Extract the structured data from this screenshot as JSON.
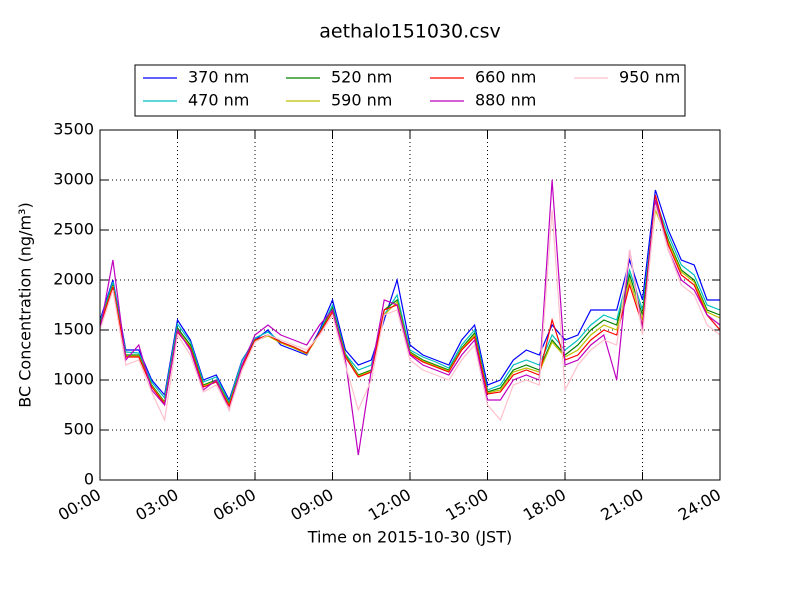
{
  "chart_data": {
    "type": "line",
    "title": "aethalo151030.csv",
    "x_label": "Time on 2015-10-30 (JST)",
    "y_label": "BC Concentration (ng/m³)",
    "x": [
      0,
      0.5,
      1,
      1.5,
      2,
      2.5,
      3,
      3.5,
      4,
      4.5,
      5,
      5.5,
      6,
      6.5,
      7,
      7.5,
      8,
      8.5,
      9,
      9.5,
      10,
      10.5,
      11,
      11.5,
      12,
      12.5,
      13,
      13.5,
      14,
      14.5,
      15,
      15.5,
      16,
      16.5,
      17,
      17.5,
      18,
      18.5,
      19,
      19.5,
      20,
      20.5,
      21,
      21.5,
      22,
      22.5,
      23,
      23.5,
      24
    ],
    "xlim": [
      0,
      24
    ],
    "xticks": [
      {
        "value": 0,
        "label": "00:00"
      },
      {
        "value": 3,
        "label": "03:00"
      },
      {
        "value": 6,
        "label": "06:00"
      },
      {
        "value": 9,
        "label": "09:00"
      },
      {
        "value": 12,
        "label": "12:00"
      },
      {
        "value": 15,
        "label": "15:00"
      },
      {
        "value": 18,
        "label": "18:00"
      },
      {
        "value": 21,
        "label": "21:00"
      },
      {
        "value": 24,
        "label": "24:00"
      }
    ],
    "ylim": [
      0,
      3500
    ],
    "yticks": [
      0,
      500,
      1000,
      1500,
      2000,
      2500,
      3000,
      3500
    ],
    "grid": true,
    "series": [
      {
        "name": "370 nm",
        "color": "#0000ff",
        "values": [
          1600,
          2000,
          1300,
          1300,
          1000,
          850,
          1600,
          1400,
          1000,
          1050,
          800,
          1200,
          1400,
          1500,
          1350,
          1300,
          1250,
          1500,
          1800,
          1300,
          1150,
          1200,
          1600,
          2000,
          1350,
          1250,
          1200,
          1150,
          1400,
          1550,
          950,
          1000,
          1200,
          1300,
          1250,
          1550,
          1400,
          1450,
          1700,
          1700,
          1700,
          2200,
          1800,
          2900,
          2500,
          2200,
          2150,
          1800,
          1800
        ]
      },
      {
        "name": "470 nm",
        "color": "#00bfbf",
        "values": [
          1580,
          1980,
          1280,
          1270,
          980,
          820,
          1560,
          1380,
          980,
          1030,
          780,
          1190,
          1420,
          1480,
          1380,
          1320,
          1260,
          1480,
          1750,
          1260,
          1100,
          1150,
          1650,
          1850,
          1300,
          1230,
          1180,
          1120,
          1350,
          1500,
          900,
          950,
          1150,
          1200,
          1150,
          1450,
          1300,
          1400,
          1550,
          1650,
          1600,
          2100,
          1700,
          2800,
          2450,
          2150,
          2050,
          1750,
          1700
        ]
      },
      {
        "name": "520 nm",
        "color": "#008000",
        "values": [
          1560,
          1950,
          1250,
          1250,
          950,
          780,
          1520,
          1350,
          950,
          1000,
          760,
          1150,
          1400,
          1450,
          1380,
          1330,
          1270,
          1470,
          1720,
          1250,
          1050,
          1100,
          1700,
          1800,
          1280,
          1200,
          1150,
          1100,
          1320,
          1470,
          880,
          920,
          1100,
          1150,
          1100,
          1400,
          1250,
          1350,
          1500,
          1600,
          1550,
          2050,
          1650,
          2750,
          2400,
          2100,
          2000,
          1700,
          1650
        ]
      },
      {
        "name": "590 nm",
        "color": "#bfbf00",
        "values": [
          1550,
          1940,
          1240,
          1240,
          940,
          770,
          1500,
          1330,
          940,
          990,
          750,
          1140,
          1390,
          1440,
          1370,
          1320,
          1260,
          1460,
          1700,
          1240,
          1040,
          1090,
          1650,
          1780,
          1270,
          1190,
          1140,
          1090,
          1310,
          1450,
          870,
          900,
          1080,
          1120,
          1080,
          1380,
          1230,
          1300,
          1450,
          1550,
          1500,
          2000,
          1600,
          2700,
          2380,
          2080,
          1980,
          1680,
          1620
        ]
      },
      {
        "name": "660 nm",
        "color": "#ff0000",
        "values": [
          1540,
          1930,
          1230,
          1230,
          930,
          760,
          1480,
          1320,
          930,
          980,
          740,
          1130,
          1400,
          1450,
          1380,
          1330,
          1270,
          1470,
          1680,
          1230,
          1030,
          1080,
          1700,
          1750,
          1260,
          1180,
          1130,
          1080,
          1300,
          1430,
          860,
          880,
          1050,
          1100,
          1050,
          1600,
          1200,
          1250,
          1400,
          1500,
          1450,
          1950,
          1550,
          2850,
          2350,
          2050,
          1950,
          1650,
          1500
        ]
      },
      {
        "name": "880 nm",
        "color": "#bf00bf",
        "values": [
          1500,
          2200,
          1200,
          1350,
          900,
          750,
          1500,
          1300,
          900,
          1000,
          700,
          1150,
          1450,
          1550,
          1450,
          1400,
          1350,
          1550,
          1700,
          1200,
          250,
          1100,
          1800,
          1750,
          1250,
          1150,
          1100,
          1050,
          1250,
          1400,
          800,
          800,
          1000,
          1050,
          1000,
          3000,
          1150,
          1200,
          1350,
          1450,
          1000,
          2300,
          1500,
          2800,
          2300,
          2000,
          1900,
          1650,
          1550
        ]
      },
      {
        "name": "950 nm",
        "color": "#ffc0cb",
        "values": [
          1500,
          1900,
          1150,
          1200,
          880,
          600,
          1450,
          1250,
          880,
          950,
          700,
          1100,
          1380,
          1450,
          1400,
          1350,
          1300,
          1450,
          1650,
          1150,
          700,
          1000,
          1650,
          1700,
          1200,
          1100,
          1050,
          1000,
          1200,
          1350,
          750,
          600,
          950,
          1000,
          950,
          2700,
          900,
          1150,
          1300,
          1400,
          1350,
          2300,
          1450,
          2750,
          2300,
          1950,
          1850,
          1550,
          1450
        ]
      }
    ]
  }
}
